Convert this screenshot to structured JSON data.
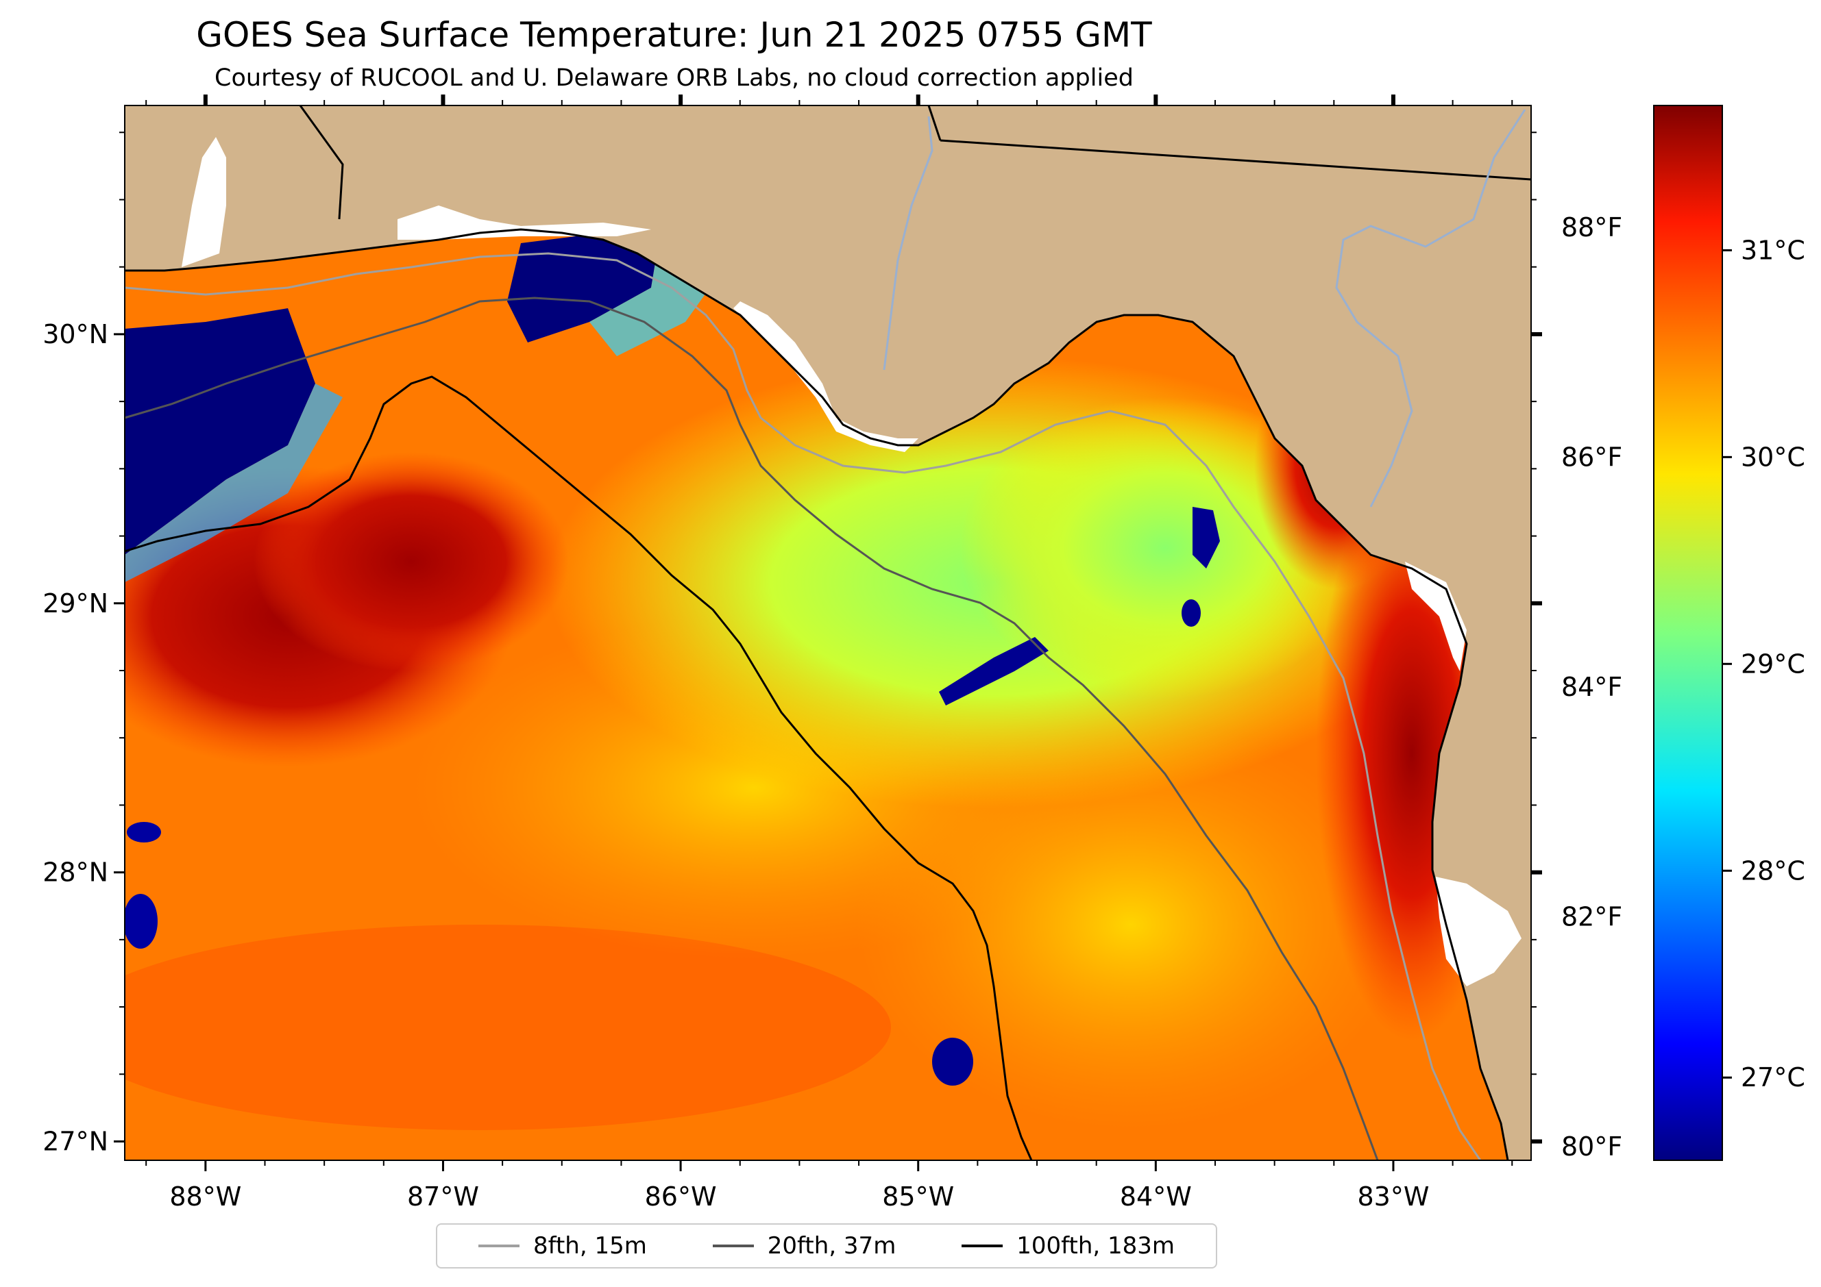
{
  "title": "GOES Sea Surface Temperature: Jun 21 2025 0755 GMT",
  "subtitle": "Courtesy of RUCOOL and U. Delaware ORB Labs, no cloud correction applied",
  "map": {
    "lon_range": [
      -88.34,
      -82.42
    ],
    "lat_range": [
      26.93,
      30.85
    ],
    "lon_ticks": [
      "88°W",
      "87°W",
      "86°W",
      "85°W",
      "84°W",
      "83°W"
    ],
    "lat_ticks": [
      "27°N",
      "28°N",
      "29°N",
      "30°N"
    ],
    "f_ticks": [
      "80°F",
      "82°F",
      "84°F",
      "86°F",
      "88°F"
    ],
    "land_color": "#d2b48c",
    "ocean_palette": {
      "warm": "#ff6a00",
      "hot": "#b30000",
      "mid": "#ffb000",
      "cool": "#e6ff2a",
      "cold": "#00007a"
    }
  },
  "colorbar": {
    "colormap": "jet",
    "range_c": [
      26.6,
      31.7
    ],
    "ticks": [
      "27°C",
      "28°C",
      "29°C",
      "30°C",
      "31°C"
    ],
    "tick_values": [
      27,
      28,
      29,
      30,
      31
    ]
  },
  "legend": {
    "placement": "bottom-center",
    "items": [
      {
        "label": "8fth, 15m",
        "color": "#a0a0a0"
      },
      {
        "label": "20fth, 37m",
        "color": "#555555"
      },
      {
        "label": "100fth, 183m",
        "color": "#000000"
      }
    ]
  }
}
